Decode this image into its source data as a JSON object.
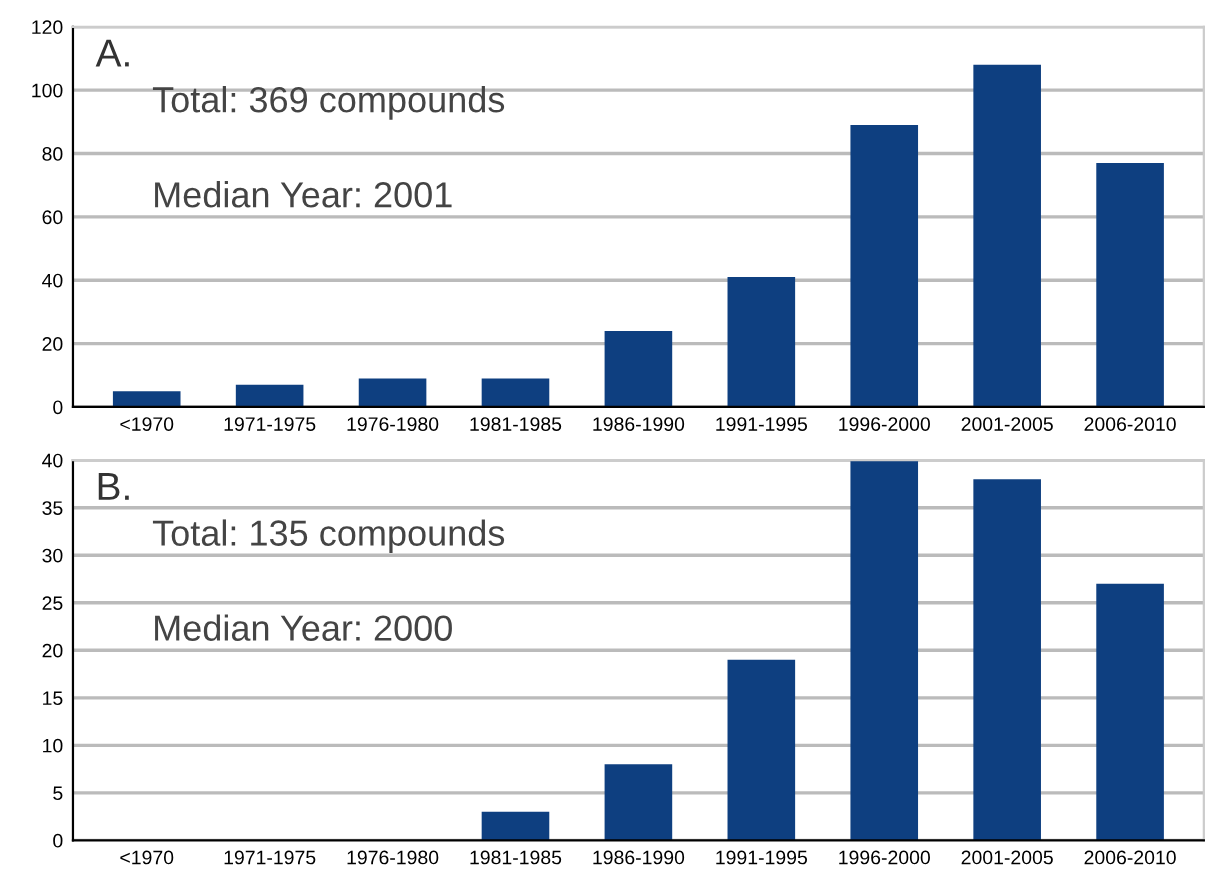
{
  "chart_data": [
    {
      "type": "bar",
      "title": "A.",
      "categories": [
        "<1970",
        "1971-1975",
        "1976-1980",
        "1981-1985",
        "1986-1990",
        "1991-1995",
        "1996-2000",
        "2001-2005",
        "2006-2010"
      ],
      "values": [
        5,
        7,
        9,
        9,
        24,
        41,
        89,
        108,
        77
      ],
      "color": "#0e3f80",
      "ylim": [
        0,
        120
      ],
      "yticks": [
        0,
        20,
        40,
        60,
        80,
        100,
        120
      ],
      "grid": "y",
      "annotations": [
        "Total: 369 compounds",
        "Median Year: 2001"
      ]
    },
    {
      "type": "bar",
      "title": "B.",
      "categories": [
        "<1970",
        "1971-1975",
        "1976-1980",
        "1981-1985",
        "1986-1990",
        "1991-1995",
        "1996-2000",
        "2001-2005",
        "2006-2010"
      ],
      "values": [
        0,
        0,
        0,
        3,
        8,
        19,
        40,
        38,
        27
      ],
      "color": "#0e3f80",
      "ylim": [
        0,
        40
      ],
      "yticks": [
        0,
        5,
        10,
        15,
        20,
        25,
        30,
        35,
        40
      ],
      "grid": "y",
      "annotations": [
        "Total: 135 compounds",
        "Median Year: 2000"
      ]
    }
  ]
}
